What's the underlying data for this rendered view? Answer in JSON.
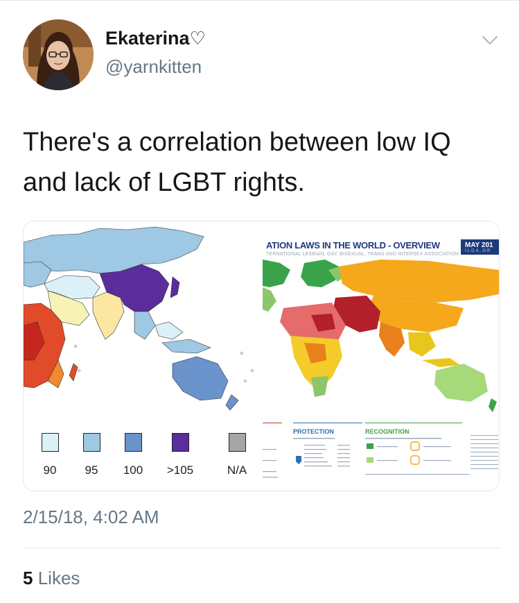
{
  "author": {
    "display_name": "Ekaterina",
    "display_name_symbol": "♡",
    "username": "@yarnkitten"
  },
  "tweet": {
    "text_line1": "There's a correlation between low IQ",
    "text_line2": "and lack of LGBT rights."
  },
  "media": {
    "iq_map": {
      "legend": [
        {
          "label": "90",
          "color": "#dcf0f7"
        },
        {
          "label": "95",
          "color": "#9ec8e3"
        },
        {
          "label": "100",
          "color": "#6a93cc"
        },
        {
          "label": ">105",
          "color": "#5b2c9c"
        },
        {
          "label": "N/A",
          "color": "#a6a6a6"
        }
      ]
    },
    "ilga_map": {
      "title": "ATION LAWS IN THE WORLD - OVERVIEW",
      "subtitle": "TERNATIONAL LESBIAN, GAY, BISEXUAL, TRANS AND INTERSEX ASSOCIATION",
      "date": "MAY 201",
      "url": "ILGA.OR",
      "protection_heading": "PROTECTION",
      "recognition_heading": "RECOGNITION"
    }
  },
  "meta": {
    "timestamp": "2/15/18, 4:02 AM",
    "likes_count": "5",
    "likes_label": "Likes"
  },
  "colors": {
    "text_primary": "#14171a",
    "text_secondary": "#657786",
    "border": "#e1e8ed"
  }
}
